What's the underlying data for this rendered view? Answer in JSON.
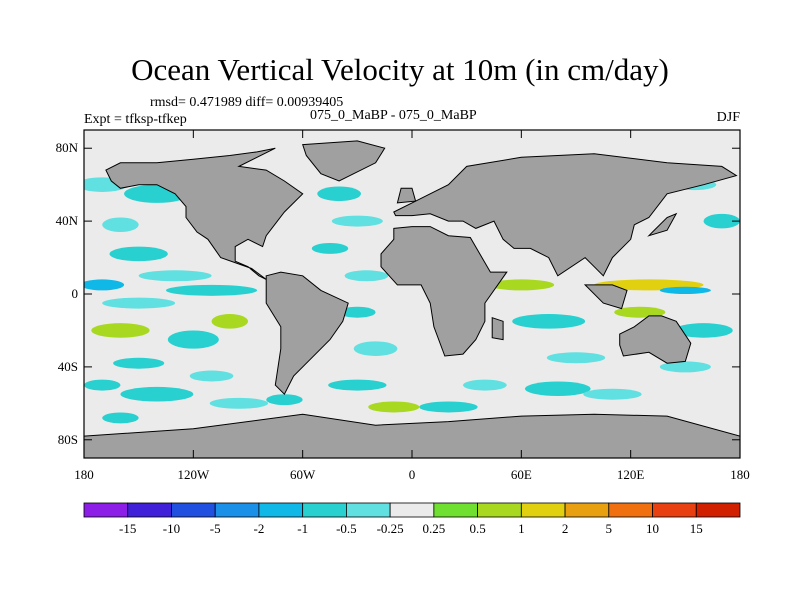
{
  "chart_data": {
    "type": "heatmap",
    "title": "Ocean Vertical Velocity at 10m (in cm/day)",
    "stats_text": "rmsd= 0.471989 diff= 0.00939405",
    "left_label": "Expt = tfksp-tfkep",
    "center_label": "075_0_MaBP - 075_0_MaBP",
    "right_label": "DJF",
    "units": "cm/day",
    "x_axis": {
      "range": [
        -180,
        180
      ],
      "ticks": [
        {
          "value": -180,
          "label": "180"
        },
        {
          "value": -120,
          "label": "120W"
        },
        {
          "value": -60,
          "label": "60W"
        },
        {
          "value": 0,
          "label": "0"
        },
        {
          "value": 60,
          "label": "60E"
        },
        {
          "value": 120,
          "label": "120E"
        },
        {
          "value": 180,
          "label": "180"
        }
      ]
    },
    "y_axis": {
      "range": [
        -90,
        90
      ],
      "ticks": [
        {
          "value": 80,
          "label": "80N"
        },
        {
          "value": 40,
          "label": "40N"
        },
        {
          "value": 0,
          "label": "0"
        },
        {
          "value": -40,
          "label": "40S"
        },
        {
          "value": -80,
          "label": "80S"
        }
      ]
    },
    "colorbar": {
      "levels": [
        "-15",
        "-10",
        "-5",
        "-2",
        "-1",
        "-0.5",
        "-0.25",
        "0.25",
        "0.5",
        "1",
        "2",
        "5",
        "10",
        "15"
      ],
      "colors": [
        "#8c1ee8",
        "#4020d8",
        "#2050e0",
        "#1a90e8",
        "#10b8e8",
        "#28d0d0",
        "#60e0e0",
        "#ebebeb",
        "#70e030",
        "#a8d820",
        "#e0d010",
        "#e8a010",
        "#f07010",
        "#e84010",
        "#d02000"
      ]
    },
    "land_color": "#a0a0a0"
  }
}
